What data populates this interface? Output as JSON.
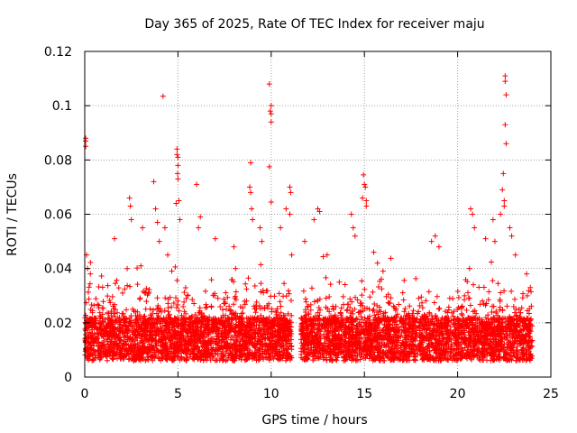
{
  "chart_data": {
    "type": "scatter",
    "title": "Day 365 of 2025, Rate Of TEC Index for receiver maju",
    "xlabel": "GPS time / hours",
    "ylabel": "ROTI / TECUs",
    "xlim": [
      0,
      25
    ],
    "ylim": [
      0,
      0.12
    ],
    "xticks": [
      0,
      5,
      10,
      15,
      20,
      25
    ],
    "xtick_labels": [
      "0",
      "5",
      "10",
      "15",
      "20",
      "25"
    ],
    "yticks": [
      0,
      0.02,
      0.04,
      0.06,
      0.08,
      0.1,
      0.12
    ],
    "ytick_labels": [
      "0",
      "0.02",
      "0.04",
      "0.06",
      "0.08",
      "0.1",
      "0.12"
    ],
    "grid": true,
    "marker": "+",
    "color": "#ff0000",
    "data_coverage": {
      "segments": [
        [
          0.0,
          11.1
        ],
        [
          11.6,
          24.0
        ]
      ],
      "typical_range": [
        0.005,
        0.03
      ]
    },
    "series": [
      {
        "name": "ROTI",
        "points": [
          [
            0.05,
            0.088
          ],
          [
            0.05,
            0.087
          ],
          [
            0.05,
            0.085
          ],
          [
            0.1,
            0.045
          ],
          [
            0.15,
            0.04
          ],
          [
            0.3,
            0.038
          ],
          [
            1.6,
            0.051
          ],
          [
            2.4,
            0.066
          ],
          [
            2.45,
            0.063
          ],
          [
            2.5,
            0.058
          ],
          [
            3.1,
            0.055
          ],
          [
            3.7,
            0.072
          ],
          [
            3.8,
            0.062
          ],
          [
            3.9,
            0.057
          ],
          [
            4.0,
            0.05
          ],
          [
            4.2,
            0.1035
          ],
          [
            4.3,
            0.055
          ],
          [
            4.45,
            0.045
          ],
          [
            4.9,
            0.064
          ],
          [
            4.95,
            0.084
          ],
          [
            4.95,
            0.082
          ],
          [
            5.0,
            0.081
          ],
          [
            5.0,
            0.078
          ],
          [
            4.98,
            0.075
          ],
          [
            5.0,
            0.073
          ],
          [
            5.05,
            0.065
          ],
          [
            5.1,
            0.058
          ],
          [
            6.0,
            0.071
          ],
          [
            6.2,
            0.059
          ],
          [
            6.1,
            0.055
          ],
          [
            7.0,
            0.051
          ],
          [
            8.0,
            0.048
          ],
          [
            8.9,
            0.079
          ],
          [
            8.85,
            0.07
          ],
          [
            8.9,
            0.068
          ],
          [
            8.95,
            0.062
          ],
          [
            9.0,
            0.058
          ],
          [
            9.4,
            0.055
          ],
          [
            9.5,
            0.05
          ],
          [
            9.9,
            0.108
          ],
          [
            10.0,
            0.1
          ],
          [
            9.95,
            0.098
          ],
          [
            10.0,
            0.097
          ],
          [
            10.0,
            0.094
          ],
          [
            9.9,
            0.0775
          ],
          [
            10.0,
            0.0645
          ],
          [
            10.5,
            0.055
          ],
          [
            10.8,
            0.062
          ],
          [
            11.0,
            0.07
          ],
          [
            11.05,
            0.068
          ],
          [
            11.0,
            0.06
          ],
          [
            11.1,
            0.045
          ],
          [
            11.8,
            0.05
          ],
          [
            12.3,
            0.058
          ],
          [
            12.5,
            0.062
          ],
          [
            12.6,
            0.061
          ],
          [
            13.0,
            0.045
          ],
          [
            14.3,
            0.06
          ],
          [
            14.4,
            0.055
          ],
          [
            14.5,
            0.052
          ],
          [
            14.9,
            0.066
          ],
          [
            14.95,
            0.0745
          ],
          [
            15.0,
            0.071
          ],
          [
            15.05,
            0.07
          ],
          [
            15.1,
            0.065
          ],
          [
            15.1,
            0.063
          ],
          [
            15.5,
            0.046
          ],
          [
            15.7,
            0.042
          ],
          [
            16.0,
            0.039
          ],
          [
            18.6,
            0.05
          ],
          [
            18.8,
            0.052
          ],
          [
            19.0,
            0.048
          ],
          [
            20.7,
            0.062
          ],
          [
            20.8,
            0.06
          ],
          [
            20.9,
            0.055
          ],
          [
            21.5,
            0.051
          ],
          [
            21.9,
            0.058
          ],
          [
            22.0,
            0.05
          ],
          [
            22.3,
            0.06
          ],
          [
            22.4,
            0.069
          ],
          [
            22.45,
            0.075
          ],
          [
            22.5,
            0.065
          ],
          [
            22.5,
            0.063
          ],
          [
            22.55,
            0.111
          ],
          [
            22.55,
            0.109
          ],
          [
            22.6,
            0.104
          ],
          [
            22.55,
            0.093
          ],
          [
            22.6,
            0.086
          ],
          [
            22.8,
            0.055
          ],
          [
            22.9,
            0.052
          ],
          [
            23.1,
            0.045
          ],
          [
            23.7,
            0.038
          ],
          [
            23.9,
            0.033
          ]
        ]
      }
    ]
  }
}
